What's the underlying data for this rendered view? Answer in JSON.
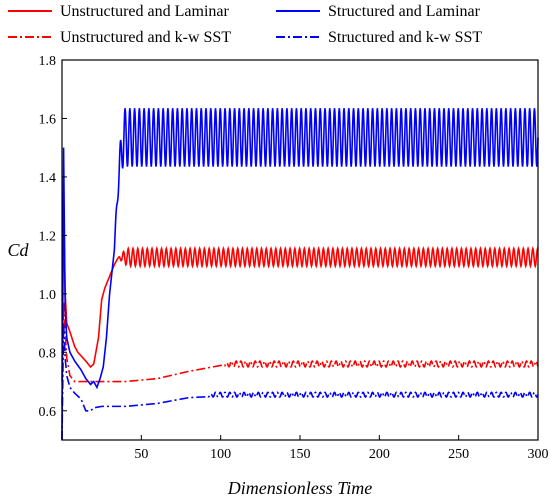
{
  "chart_data": {
    "type": "line",
    "title": "",
    "xlabel": "Dimensionless Time",
    "ylabel": "Cd",
    "xlim": [
      0,
      300
    ],
    "ylim": [
      0.5,
      1.8
    ],
    "xticks": [
      50,
      100,
      150,
      200,
      250,
      300
    ],
    "yticks": [
      0.6,
      0.8,
      1.0,
      1.2,
      1.4,
      1.6,
      1.8
    ],
    "xtick_labels": [
      "50",
      "100",
      "150",
      "200",
      "250",
      "300"
    ],
    "ytick_labels": [
      "0.6",
      "0.8",
      "1.0",
      "1.2",
      "1.4",
      "1.6",
      "1.8"
    ],
    "grid": false,
    "legend_position": "top",
    "series": [
      {
        "name": "Unstructured and Laminar",
        "color": "#ff0000",
        "dash": "solid",
        "x": [
          0,
          1,
          2,
          3,
          5,
          8,
          10,
          15,
          18,
          20,
          23,
          25,
          27,
          30,
          33,
          35,
          40,
          300
        ],
        "y": [
          0.7,
          1.27,
          1.0,
          0.9,
          0.87,
          0.82,
          0.8,
          0.77,
          0.75,
          0.76,
          0.85,
          0.98,
          1.02,
          1.06,
          1.1,
          1.12,
          1.13,
          1.13
        ],
        "oscillation": {
          "from_x": 35,
          "center": 1.125,
          "amplitude": 0.03,
          "period": 3.0
        }
      },
      {
        "name": "Structured and Laminar",
        "color": "#0000ff",
        "dash": "solid",
        "x": [
          0,
          1,
          2,
          3,
          5,
          8,
          12,
          15,
          18,
          20,
          22,
          24,
          26,
          28,
          30,
          33,
          35,
          38,
          40,
          45,
          50,
          300
        ],
        "y": [
          0.5,
          1.5,
          0.95,
          0.85,
          0.8,
          0.77,
          0.74,
          0.71,
          0.69,
          0.7,
          0.68,
          0.71,
          0.75,
          0.85,
          1.0,
          1.15,
          1.25,
          1.38,
          1.45,
          1.52,
          1.54,
          1.54
        ],
        "oscillation": {
          "from_x": 33,
          "center": 1.535,
          "amplitude": 0.1,
          "period": 3.0
        }
      },
      {
        "name": "Unstructured and k-w SST",
        "color": "#ff0000",
        "dash": "dashdot",
        "x": [
          0,
          1,
          3,
          5,
          8,
          12,
          15,
          20,
          30,
          40,
          60,
          80,
          100,
          150,
          200,
          250,
          300
        ],
        "y": [
          0.62,
          0.97,
          0.78,
          0.72,
          0.7,
          0.7,
          0.7,
          0.7,
          0.7,
          0.7,
          0.71,
          0.735,
          0.755,
          0.76,
          0.76,
          0.76,
          0.76
        ],
        "oscillation": {
          "from_x": 100,
          "center": 0.76,
          "amplitude": 0.01,
          "period": 3.0
        }
      },
      {
        "name": "Structured and k-w SST",
        "color": "#0000ff",
        "dash": "dashdot",
        "x": [
          0,
          1,
          2,
          3,
          5,
          8,
          12,
          15,
          18,
          20,
          25,
          40,
          60,
          80,
          100,
          150,
          200,
          250,
          300
        ],
        "y": [
          0.5,
          0.9,
          0.78,
          0.72,
          0.68,
          0.66,
          0.64,
          0.6,
          0.6,
          0.61,
          0.615,
          0.615,
          0.625,
          0.645,
          0.65,
          0.655,
          0.655,
          0.655,
          0.655
        ],
        "oscillation": {
          "from_x": 90,
          "center": 0.655,
          "amplitude": 0.008,
          "period": 3.0
        }
      }
    ]
  }
}
